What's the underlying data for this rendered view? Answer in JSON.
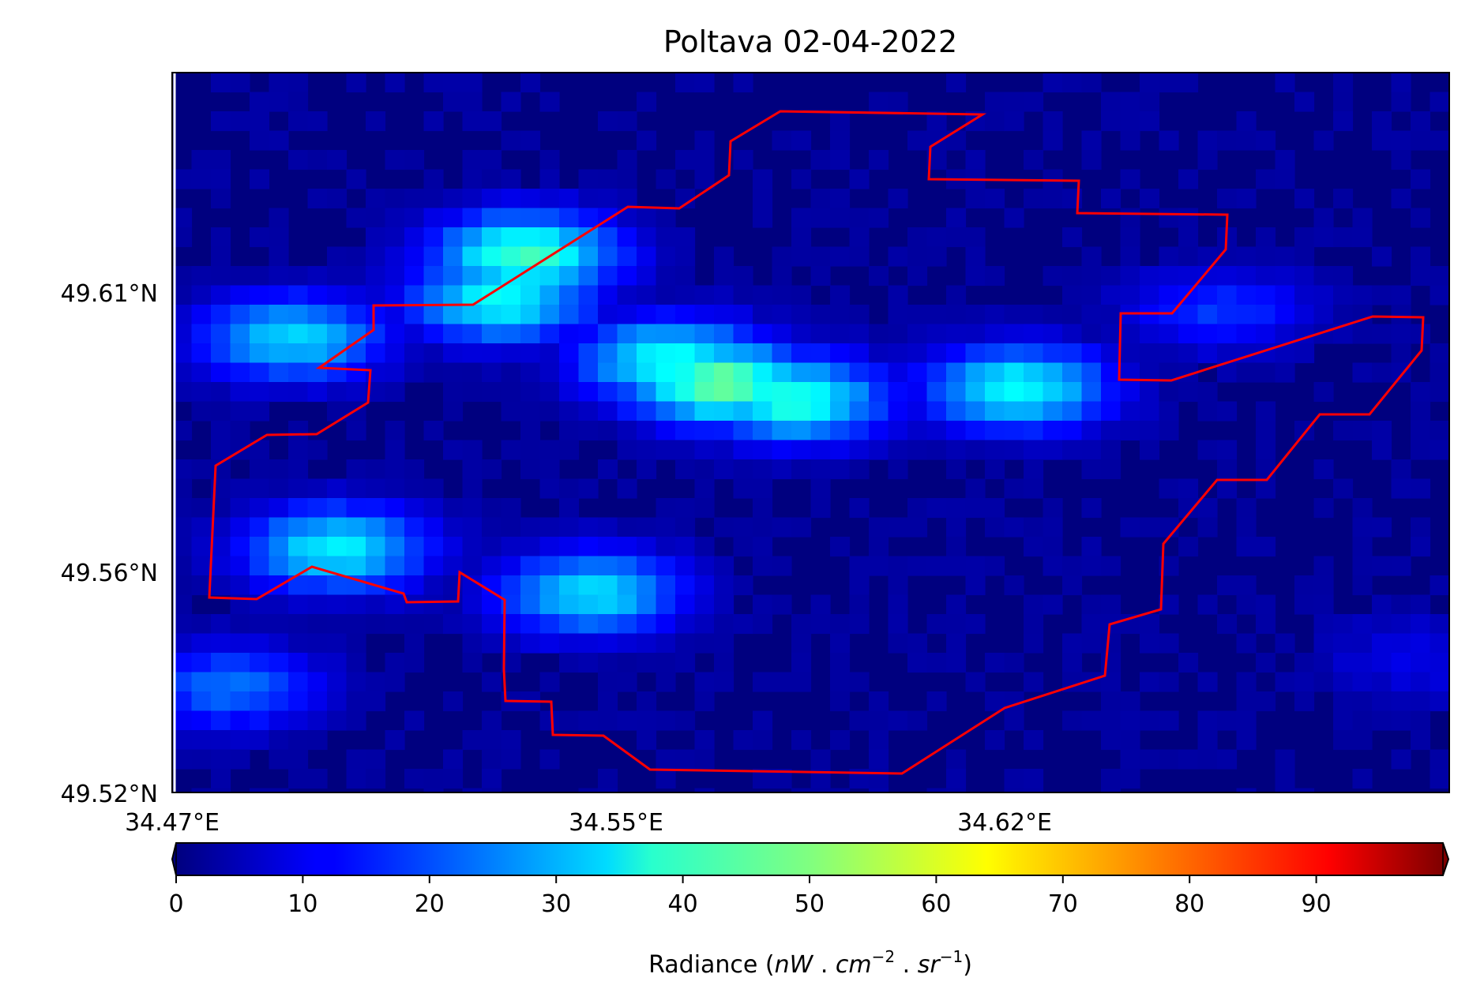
{
  "title": "Poltava 02-04-2022",
  "map": {
    "lon_range": [
      34.47,
      34.68
    ],
    "lat_range": [
      49.52,
      49.65
    ],
    "lat_ticks": [
      {
        "value": 49.61,
        "label": "49.61°N"
      },
      {
        "value": 49.56,
        "label": "49.56°N"
      },
      {
        "value": 49.52,
        "label": "49.52°N"
      }
    ],
    "lon_ticks": [
      {
        "value": 34.47,
        "label": "34.47°E"
      },
      {
        "value": 34.55,
        "label": "34.55°E"
      },
      {
        "value": 34.62,
        "label": "34.62°E"
      }
    ],
    "background_color": "#00007f",
    "boundary_color": "#ff0000"
  },
  "colorbar": {
    "colormap": "jet",
    "min": 0,
    "max": 100,
    "ticks": [
      "0",
      "10",
      "20",
      "30",
      "40",
      "50",
      "60",
      "70",
      "80",
      "90"
    ],
    "label_prefix": "Radiance (",
    "label_unit_nw": "nW",
    "label_sep1": " . ",
    "label_unit_cm": "cm",
    "label_exp_cm": "−2",
    "label_sep2": " . ",
    "label_unit_sr": "sr",
    "label_exp_sr": "−1",
    "label_suffix": ")"
  },
  "chart_data": {
    "type": "heatmap",
    "title": "Poltava 02-04-2022",
    "xlabel": "",
    "ylabel": "",
    "value_label": "Radiance (nW . cm^-2 . sr^-1)",
    "xlim": [
      34.47,
      34.68
    ],
    "ylim": [
      49.52,
      49.65
    ],
    "vmin": 0,
    "vmax": 100,
    "approximate_hotspots": [
      {
        "lon": 34.49,
        "lat": 49.602,
        "value": 32
      },
      {
        "lon": 34.524,
        "lat": 49.609,
        "value": 37
      },
      {
        "lon": 34.528,
        "lat": 49.617,
        "value": 42
      },
      {
        "lon": 34.552,
        "lat": 49.598,
        "value": 38
      },
      {
        "lon": 34.56,
        "lat": 49.594,
        "value": 47
      },
      {
        "lon": 34.572,
        "lat": 49.591,
        "value": 40
      },
      {
        "lon": 34.609,
        "lat": 49.593,
        "value": 37
      },
      {
        "lon": 34.497,
        "lat": 49.564,
        "value": 35
      },
      {
        "lon": 34.539,
        "lat": 49.556,
        "value": 33
      },
      {
        "lon": 34.48,
        "lat": 49.539,
        "value": 22
      },
      {
        "lon": 34.642,
        "lat": 49.607,
        "value": 16
      },
      {
        "lon": 34.674,
        "lat": 49.544,
        "value": 9
      }
    ]
  }
}
